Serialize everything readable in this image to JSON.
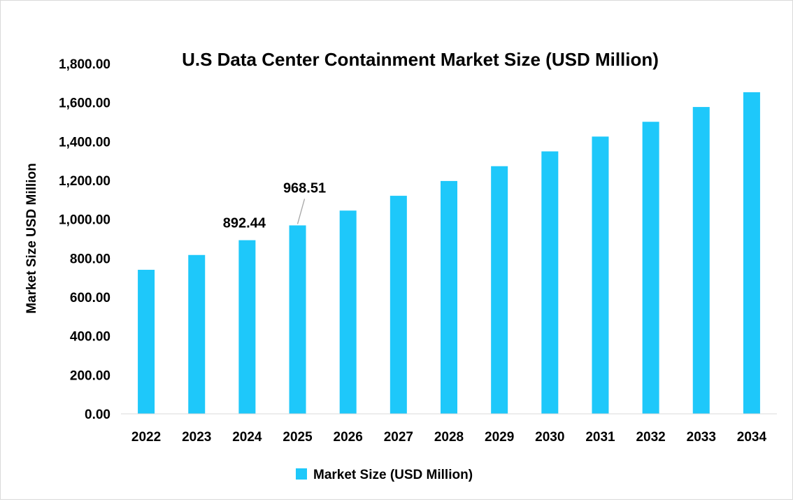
{
  "chart_data": {
    "type": "bar",
    "title": "U.S Data Center Containment Market Size (USD Million)",
    "xlabel": "",
    "ylabel": "Market Size USD Million",
    "ylim": [
      0,
      1800
    ],
    "yticks": [
      0,
      200,
      400,
      600,
      800,
      1000,
      1200,
      1400,
      1600,
      1800
    ],
    "ytick_labels": [
      "0.00",
      "200.00",
      "400.00",
      "600.00",
      "800.00",
      "1,000.00",
      "1,200.00",
      "1,400.00",
      "1,600.00",
      "1,800.00"
    ],
    "categories": [
      "2022",
      "2023",
      "2024",
      "2025",
      "2026",
      "2027",
      "2028",
      "2029",
      "2030",
      "2031",
      "2032",
      "2033",
      "2034"
    ],
    "series": [
      {
        "name": "Market Size (USD Million)",
        "color": "#1ec8fa",
        "values": [
          740.3,
          816.4,
          892.44,
          968.51,
          1044.6,
          1120.7,
          1196.7,
          1272.8,
          1348.9,
          1425.0,
          1501.0,
          1577.0,
          1653.0
        ]
      }
    ],
    "data_labels": [
      {
        "category": "2024",
        "text": "892.44"
      },
      {
        "category": "2025",
        "text": "968.51"
      }
    ],
    "grid": false,
    "legend": "bottom-center"
  }
}
